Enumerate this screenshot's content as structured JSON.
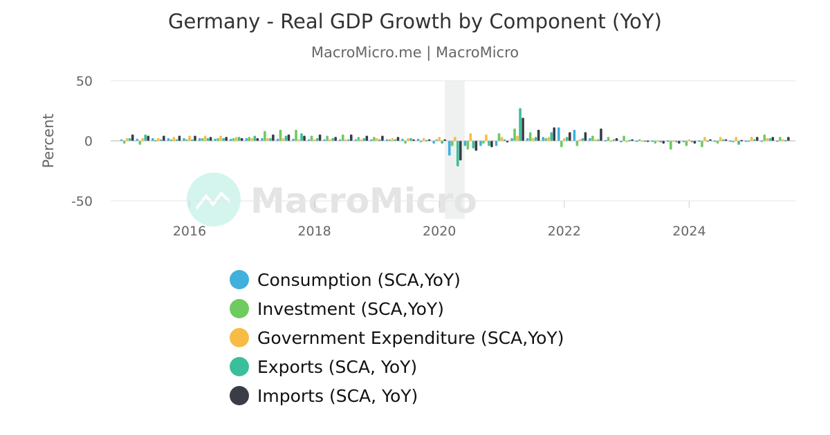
{
  "chart_data": {
    "type": "bar",
    "title": "Germany - Real GDP Growth by Component (YoY)",
    "subtitle": "MacroMicro.me | MacroMicro",
    "ylabel": "Percent",
    "xlabel": "",
    "ylim": [
      -50,
      50
    ],
    "yticks": [
      "50",
      "0",
      "-50"
    ],
    "xticks": [
      "2016",
      "2018",
      "2020",
      "2022",
      "2024"
    ],
    "grid": true,
    "legend_placement": "bottom",
    "watermark": "MacroMicro",
    "recession_shading": [
      "2020Q1",
      "2020Q2"
    ],
    "categories": [
      "2015Q1",
      "2015Q2",
      "2015Q3",
      "2015Q4",
      "2016Q1",
      "2016Q2",
      "2016Q3",
      "2016Q4",
      "2017Q1",
      "2017Q2",
      "2017Q3",
      "2017Q4",
      "2018Q1",
      "2018Q2",
      "2018Q3",
      "2018Q4",
      "2019Q1",
      "2019Q2",
      "2019Q3",
      "2019Q4",
      "2020Q1",
      "2020Q2",
      "2020Q3",
      "2020Q4",
      "2021Q1",
      "2021Q2",
      "2021Q3",
      "2021Q4",
      "2022Q1",
      "2022Q2",
      "2022Q3",
      "2022Q4",
      "2023Q1",
      "2023Q2",
      "2023Q3",
      "2023Q4",
      "2024Q1",
      "2024Q2",
      "2024Q3",
      "2024Q4",
      "2025Q1",
      "2025Q2",
      "2025Q3"
    ],
    "series": [
      {
        "name": "Consumption (SCA,YoY)",
        "color": "#41b0dc",
        "values": [
          1,
          1.5,
          2,
          2,
          2,
          2,
          1.5,
          1.5,
          2,
          2,
          1.5,
          1.5,
          1,
          1,
          1,
          1,
          1,
          1,
          1.5,
          1.5,
          -2,
          -12,
          -4,
          -4,
          -4,
          2,
          2,
          3,
          11,
          9,
          2,
          0.5,
          -1,
          0,
          0,
          0,
          -0.5,
          0,
          0,
          0,
          0,
          0,
          0
        ]
      },
      {
        "name": "Investment (SCA,YoY)",
        "color": "#6fca5f",
        "values": [
          -2,
          -3,
          0.5,
          1,
          1,
          2,
          2,
          2,
          3,
          8,
          9,
          9,
          4,
          4,
          5,
          3,
          3,
          1,
          -2,
          -1,
          1,
          -4,
          -7,
          -2,
          6,
          10,
          7,
          2,
          -5,
          -4,
          4,
          3,
          4,
          1,
          -2,
          -7,
          -4,
          -5,
          -2,
          -1,
          0,
          5,
          3
        ]
      },
      {
        "name": "Government Expenditure (SCA,YoY)",
        "color": "#f7bc45",
        "values": [
          2,
          2,
          2,
          3,
          4,
          4,
          4,
          3,
          2,
          2,
          2,
          1,
          1,
          1,
          1,
          1,
          2,
          2,
          2,
          2,
          3,
          3,
          6,
          5,
          3,
          4,
          2,
          3,
          2,
          1,
          1,
          0,
          -1,
          0,
          0,
          0,
          1,
          3,
          3,
          3,
          3,
          2,
          1
        ]
      },
      {
        "name": "Exports (SCA, YoY)",
        "color": "#3bbf9b",
        "values": [
          2,
          5,
          1,
          1,
          1,
          2,
          2,
          3,
          4,
          2,
          4,
          6,
          2,
          2,
          1,
          2,
          1,
          1,
          2,
          0.5,
          -2,
          -21,
          -6,
          -4,
          1,
          27,
          3,
          7,
          3,
          2,
          1,
          1,
          0.5,
          0,
          -1,
          -1,
          -1,
          0,
          1,
          -3,
          1,
          2,
          0.5
        ]
      },
      {
        "name": "Imports (SCA, YoY)",
        "color": "#3a3d46",
        "values": [
          5,
          4,
          4,
          4,
          4,
          3,
          3,
          2,
          2,
          5,
          5,
          4,
          5,
          3,
          5,
          4,
          4,
          3,
          1,
          1,
          1,
          -16,
          -8,
          -5,
          -1,
          19,
          9,
          11,
          7,
          7,
          10,
          2,
          1,
          0,
          -2,
          -2,
          -2,
          1,
          1,
          0.5,
          3,
          3,
          3
        ]
      }
    ]
  }
}
